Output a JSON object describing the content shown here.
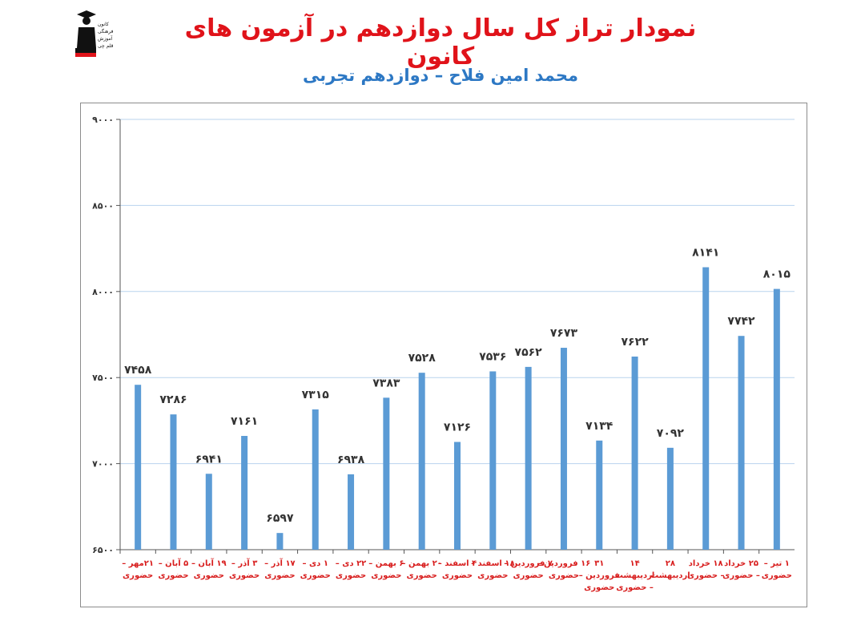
{
  "page": {
    "title": "نمودار تراز کل سال دوازدهم در آزمون های کانون",
    "subtitle": "محمد امین فلاح – دوازدهم تجربی",
    "logo_text": [
      "کانون",
      "فرهنگی",
      "آموزش",
      "قلم چی"
    ]
  },
  "colors": {
    "title": "#e0131a",
    "subtitle": "#2d78c4",
    "bar": "#5b9bd5",
    "gridline": "#b9d3ee",
    "category_label": "#d81e1e",
    "value_label": "#333333"
  },
  "chart_data": {
    "type": "bar",
    "title": "نمودار تراز کل سال دوازدهم در آزمون های کانون",
    "subtitle": "محمد امین فلاح – دوازدهم تجربی",
    "xlabel": "",
    "ylabel": "",
    "ylim": [
      6500,
      9000
    ],
    "yticks": [
      6500,
      7000,
      7500,
      8000,
      8500,
      9000
    ],
    "ytick_labels": [
      "۶۵۰۰",
      "۷۰۰۰",
      "۷۵۰۰",
      "۸۰۰۰",
      "۸۵۰۰",
      "۹۰۰۰"
    ],
    "grid": true,
    "legend": "none",
    "categories": [
      [
        "۲۱مهر –",
        "حضوری"
      ],
      [
        "۵ آبان –",
        "حضوری"
      ],
      [
        "۱۹ آبان –",
        "حضوری"
      ],
      [
        "۳ آذر –",
        "حضوری"
      ],
      [
        "۱۷ آذر –",
        "حضوری"
      ],
      [
        "۱ دی –",
        "حضوری"
      ],
      [
        "۲۲ دی –",
        "حضوری"
      ],
      [
        "۶ بهمن –",
        "حضوری"
      ],
      [
        "۲۰ بهمن –",
        "حضوری"
      ],
      [
        "۴ اسفند –",
        "حضوری"
      ],
      [
        "۱۸ اسفند –",
        "حضوری"
      ],
      [
        "۷ فروردین –",
        "حضوری"
      ],
      [
        "۱۶ فروردین –",
        "حضوری"
      ],
      [
        "۳۱",
        "فروردین –",
        "حضوری"
      ],
      [
        "۱۴",
        "اردیبهشت",
        "– حضوری"
      ],
      [
        "۲۸",
        "اردیبهشت"
      ],
      [
        "۱۸ خرداد",
        "– حضوری"
      ],
      [
        "۲۵ خرداد",
        "– حضوری"
      ],
      [
        "۱ تیر –",
        "حضوری"
      ]
    ],
    "values": [
      7458,
      7286,
      6941,
      7161,
      6597,
      7315,
      6938,
      7383,
      7528,
      7126,
      7536,
      7562,
      7673,
      7134,
      7622,
      7092,
      8141,
      7742,
      8015
    ],
    "value_labels": [
      "۷۴۵۸",
      "۷۲۸۶",
      "۶۹۴۱",
      "۷۱۶۱",
      "۶۵۹۷",
      "۷۳۱۵",
      "۶۹۳۸",
      "۷۳۸۳",
      "۷۵۲۸",
      "۷۱۲۶",
      "۷۵۳۶",
      "۷۵۶۲",
      "۷۶۷۳",
      "۷۱۳۴",
      "۷۶۲۲",
      "۷۰۹۲",
      "۸۱۴۱",
      "۷۷۴۲",
      "۸۰۱۵"
    ]
  }
}
